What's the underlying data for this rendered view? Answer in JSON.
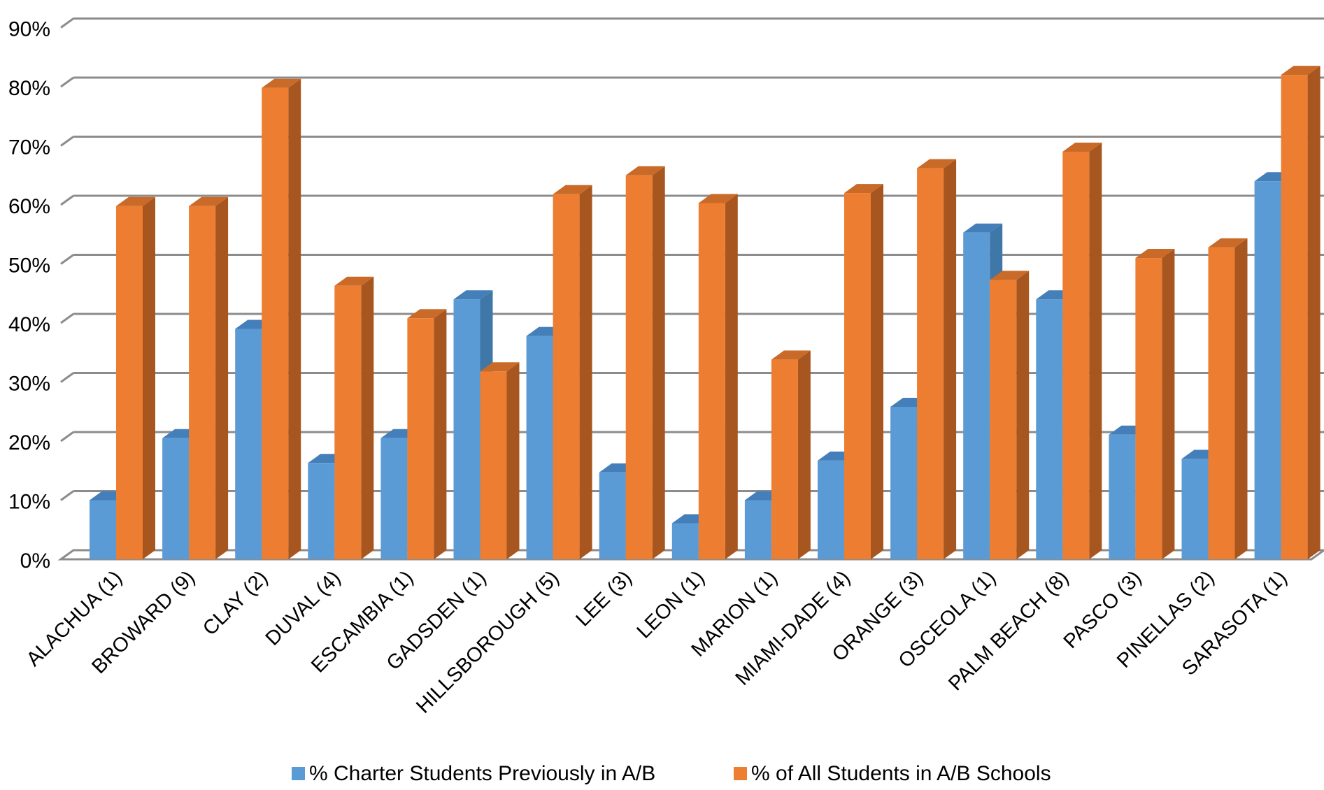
{
  "chart_data": {
    "type": "bar",
    "title": "",
    "xlabel": "",
    "ylabel": "",
    "ylim": [
      0,
      90
    ],
    "grid": true,
    "legend_position": "bottom",
    "y_ticks": [
      "0%",
      "10%",
      "20%",
      "30%",
      "40%",
      "50%",
      "60%",
      "70%",
      "80%",
      "90%"
    ],
    "categories": [
      "ALACHUA (1)",
      "BROWARD (9)",
      "CLAY (2)",
      "DUVAL (4)",
      "ESCAMBIA (1)",
      "GADSDEN (1)",
      "HILLSBOROUGH (5)",
      "LEE (3)",
      "LEON (1)",
      "MARION (1)",
      "MIAMI-DADE (4)",
      "ORANGE (3)",
      "OSCEOLA (1)",
      "PALM BEACH (8)",
      "PASCO (3)",
      "PINELLAS (2)",
      "SARASOTA (1)"
    ],
    "series": [
      {
        "name": "% Charter Students Previously in A/B",
        "color": "#5B9BD5",
        "side_color": "#3F77A8",
        "top_color": "#447FBA",
        "values": [
          10,
          20.5,
          39,
          16.3,
          20.5,
          44,
          37.8,
          14.7,
          6.1,
          10,
          16.7,
          25.8,
          55.3,
          44,
          21.1,
          17,
          64
        ]
      },
      {
        "name": "% of All Students in A/B Schools",
        "color": "#ED7D31",
        "side_color": "#A8561F",
        "top_color": "#C96A28",
        "values": [
          59.8,
          59.8,
          79.8,
          46.3,
          40.8,
          31.8,
          61.8,
          65,
          60.3,
          33.8,
          62,
          66.2,
          47.3,
          69,
          51,
          52.8,
          82
        ]
      }
    ]
  }
}
